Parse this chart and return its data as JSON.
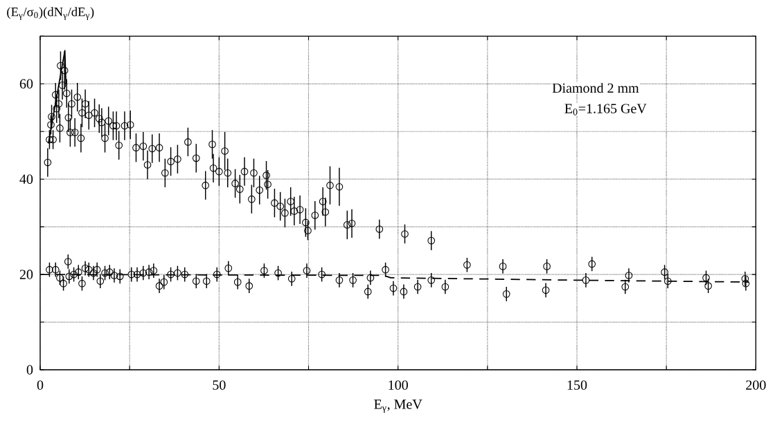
{
  "chart_data": {
    "type": "scatter",
    "xlabel": "E$_{γ}$, MeV",
    "ylabel": "(E$_{γ}$/σ$_{0}$)(dN$_{γ}$/dE$_{γ}$)",
    "annotations": [
      "Diamond 2 mm",
      "E$_{0}$=1.165 GeV"
    ],
    "xlim": [
      0,
      200
    ],
    "ylim": [
      0,
      70
    ],
    "xticks": [
      0,
      {
        "value": 25,
        "label": null
      },
      50,
      {
        "value": 75,
        "label": null
      },
      100,
      {
        "value": 125,
        "label": null
      },
      150,
      {
        "value": 175,
        "label": null
      },
      200
    ],
    "yticks": [
      0,
      {
        "value": 10,
        "label": null
      },
      20,
      {
        "value": 30,
        "label": null
      },
      40,
      {
        "value": 50,
        "label": null
      },
      60,
      {
        "value": 70,
        "label": null
      }
    ],
    "grid": true,
    "series": [
      {
        "marker": "circle",
        "color": "#000000",
        "x": [
          2.1,
          2.6,
          3.6,
          3.0,
          3.2,
          4.3,
          4.6,
          5.2,
          5.5,
          5.7,
          6.8,
          6.2,
          7.4,
          7.9,
          8.8,
          8.4,
          9.7,
          10.4,
          11.4,
          11.7,
          12.6,
          13.6,
          15.2,
          16.5,
          17.2,
          18.1,
          19.1,
          20.4,
          21.3,
          22.0,
          23.6,
          25.2,
          26.8,
          28.8,
          30.0,
          31.3,
          33.3,
          34.9,
          36.5,
          38.4,
          41.3,
          43.6,
          46.2,
          48.1,
          48.4,
          50.0,
          51.6,
          52.4,
          54.5,
          55.8,
          57.1,
          59.7,
          59.1,
          61.3,
          63.2,
          63.6,
          65.5,
          67.1,
          68.4,
          70.0,
          71.0,
          72.6,
          74.2,
          74.8,
          76.8,
          79.0,
          79.7,
          81.0,
          83.6,
          85.8,
          87.1,
          94.8,
          101.9,
          109.3
        ],
        "values": [
          43.5,
          48.3,
          48.3,
          51.4,
          53.1,
          57.7,
          54.8,
          55.8,
          50.7,
          63.8,
          62.8,
          59.7,
          58.0,
          52.9,
          55.8,
          49.8,
          49.8,
          57.2,
          48.6,
          53.9,
          55.8,
          53.4,
          53.9,
          52.7,
          51.9,
          48.6,
          52.2,
          51.2,
          51.2,
          47.1,
          51.2,
          51.4,
          46.6,
          46.9,
          43.0,
          46.4,
          46.6,
          41.3,
          43.7,
          44.2,
          47.8,
          44.4,
          38.7,
          47.3,
          42.3,
          41.6,
          45.9,
          41.3,
          39.1,
          37.9,
          41.6,
          41.3,
          35.8,
          37.7,
          40.8,
          38.9,
          35.0,
          34.3,
          32.9,
          35.3,
          33.3,
          33.6,
          30.9,
          29.2,
          32.4,
          35.3,
          33.1,
          38.7,
          38.4,
          30.4,
          30.7,
          29.5,
          28.5,
          27.1
        ],
        "errors": [
          3,
          2,
          2,
          2,
          2.5,
          2.5,
          3,
          3,
          3,
          3,
          4,
          3,
          3,
          3,
          3,
          3,
          3,
          3,
          3,
          3,
          3,
          3,
          3,
          3,
          3,
          3,
          3,
          3,
          3,
          3,
          3,
          3,
          3,
          3,
          3,
          3,
          3,
          3,
          3,
          3,
          3,
          3,
          3,
          3,
          3,
          3,
          4,
          3,
          3,
          3,
          3,
          3,
          3,
          3,
          3,
          3,
          3,
          3,
          3,
          3,
          3,
          3,
          3,
          2,
          3,
          3,
          3,
          4,
          4,
          3,
          3,
          2,
          2,
          2
        ]
      },
      {
        "marker": "circle",
        "color": "#000000",
        "x": [
          2.6,
          4.3,
          5.5,
          6.5,
          7.8,
          8.1,
          9.4,
          10.7,
          11.7,
          12.6,
          13.6,
          14.9,
          15.9,
          16.8,
          18.1,
          19.4,
          20.7,
          22.3,
          25.5,
          27.1,
          28.8,
          30.4,
          31.7,
          33.3,
          34.6,
          36.5,
          38.4,
          40.4,
          43.6,
          46.5,
          49.4,
          52.6,
          55.2,
          58.4,
          62.6,
          66.5,
          70.3,
          74.5,
          78.7,
          83.6,
          87.4,
          92.3,
          91.6,
          96.5,
          98.7,
          101.6,
          105.5,
          109.3,
          113.2,
          119.3,
          129.3,
          130.3,
          141.6,
          141.3,
          152.5,
          154.2,
          164.5,
          163.5,
          174.5,
          175.4,
          186.1,
          186.7,
          197.0,
          197.2
        ],
        "values": [
          21.0,
          21.0,
          19.3,
          18.1,
          22.7,
          19.6,
          20.0,
          20.5,
          18.1,
          21.3,
          21.0,
          20.3,
          21.0,
          18.6,
          20.3,
          20.5,
          19.8,
          19.6,
          20.0,
          20.0,
          20.3,
          20.5,
          20.8,
          17.6,
          18.4,
          20.0,
          20.3,
          20.0,
          18.6,
          18.6,
          20.0,
          21.3,
          18.4,
          17.6,
          20.8,
          20.3,
          19.1,
          20.8,
          20.0,
          18.8,
          18.8,
          19.3,
          16.4,
          21.0,
          17.1,
          16.4,
          17.4,
          18.8,
          17.4,
          22.0,
          21.7,
          15.9,
          21.7,
          16.7,
          18.8,
          22.2,
          19.8,
          17.4,
          20.5,
          18.6,
          19.3,
          17.6,
          19.1,
          18.1
        ],
        "errors": [
          1.5,
          1.5,
          1.5,
          1.5,
          1.5,
          1.5,
          1.5,
          1.5,
          1.5,
          1.5,
          1.5,
          1.5,
          1.5,
          1.5,
          1.5,
          1.5,
          1.5,
          1.5,
          1.5,
          1.5,
          1.5,
          1.5,
          1.5,
          1.5,
          1.5,
          1.5,
          1.5,
          1.5,
          1.5,
          1.5,
          1.5,
          1.5,
          1.5,
          1.5,
          1.5,
          1.5,
          1.5,
          1.5,
          1.5,
          1.5,
          1.5,
          1.5,
          1.5,
          1.5,
          1.5,
          1.5,
          1.5,
          1.5,
          1.5,
          1.5,
          1.5,
          1.5,
          1.5,
          1.5,
          1.5,
          1.5,
          1.5,
          1.5,
          1.5,
          1.5,
          1.5,
          1.5,
          1.5,
          1.5
        ]
      },
      {
        "type": "line",
        "line_style": "dashed",
        "color": "#000000",
        "x": [
          0,
          96,
          98,
          150,
          198
        ],
        "values": [
          20.0,
          19.8,
          19.3,
          18.8,
          18.4
        ]
      },
      {
        "type": "line",
        "line_style": "solid",
        "color": "#000000",
        "x": [
          2.3,
          6.9,
          7.2
        ],
        "values": [
          47.5,
          67.0,
          60.0
        ]
      }
    ]
  }
}
